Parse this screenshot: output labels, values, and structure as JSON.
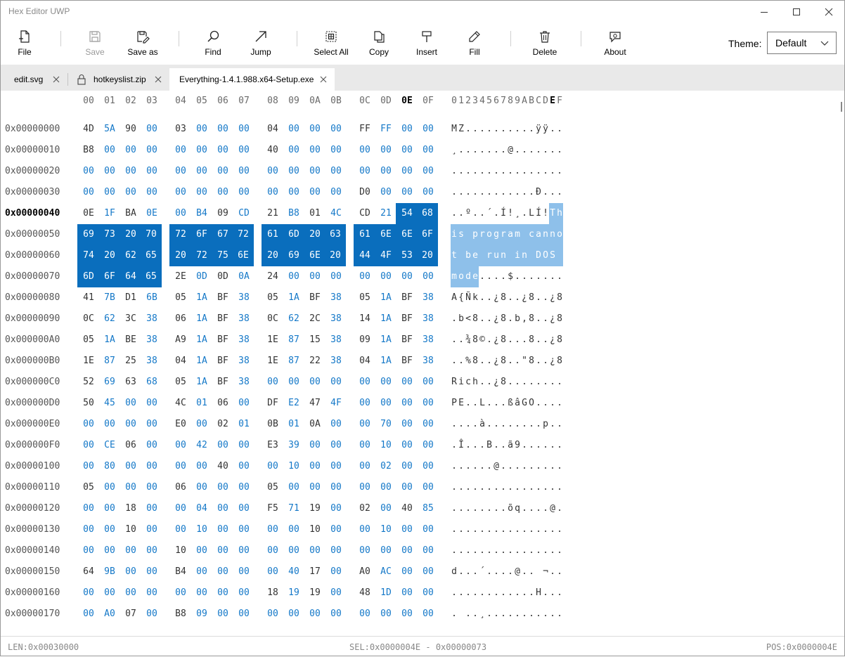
{
  "window": {
    "title": "Hex Editor UWP"
  },
  "toolbar": {
    "file": "File",
    "save": "Save",
    "save_as": "Save as",
    "find": "Find",
    "jump": "Jump",
    "select_all": "Select All",
    "copy": "Copy",
    "insert": "Insert",
    "fill": "Fill",
    "delete": "Delete",
    "about": "About",
    "theme_label": "Theme:",
    "theme_value": "Default"
  },
  "tabs": [
    {
      "label": "edit.svg",
      "locked": false,
      "active": false
    },
    {
      "label": "hotkeyslist.zip",
      "locked": true,
      "active": false
    },
    {
      "label": "Everything-1.4.1.988.x64-Setup.exe",
      "locked": false,
      "active": true
    }
  ],
  "hex": {
    "headers": [
      "00",
      "01",
      "02",
      "03",
      "04",
      "05",
      "06",
      "07",
      "08",
      "09",
      "0A",
      "0B",
      "0C",
      "0D",
      "0E",
      "0F"
    ],
    "ascii_header": "0123456789ABCDEF",
    "current_column": 14,
    "current_row": 4,
    "selection": {
      "start": 78,
      "end": 115
    },
    "rows": [
      {
        "offset": "0x00000000",
        "bytes": "4D 5A 90 00 03 00 00 00 04 00 00 00 FF FF 00 00",
        "ascii": "MZ..........ÿÿ.."
      },
      {
        "offset": "0x00000010",
        "bytes": "B8 00 00 00 00 00 00 00 40 00 00 00 00 00 00 00",
        "ascii": "¸.......@......."
      },
      {
        "offset": "0x00000020",
        "bytes": "00 00 00 00 00 00 00 00 00 00 00 00 00 00 00 00",
        "ascii": "................"
      },
      {
        "offset": "0x00000030",
        "bytes": "00 00 00 00 00 00 00 00 00 00 00 00 D0 00 00 00",
        "ascii": "............Ð..."
      },
      {
        "offset": "0x00000040",
        "bytes": "0E 1F BA 0E 00 B4 09 CD 21 B8 01 4C CD 21 54 68",
        "ascii": "..º..´.Í!¸.LÍ!Th"
      },
      {
        "offset": "0x00000050",
        "bytes": "69 73 20 70 72 6F 67 72 61 6D 20 63 61 6E 6E 6F",
        "ascii": "is program canno"
      },
      {
        "offset": "0x00000060",
        "bytes": "74 20 62 65 20 72 75 6E 20 69 6E 20 44 4F 53 20",
        "ascii": "t be run in DOS "
      },
      {
        "offset": "0x00000070",
        "bytes": "6D 6F 64 65 2E 0D 0D 0A 24 00 00 00 00 00 00 00",
        "ascii": "mode....$......."
      },
      {
        "offset": "0x00000080",
        "bytes": "41 7B D1 6B 05 1A BF 38 05 1A BF 38 05 1A BF 38",
        "ascii": "A{Ñk..¿8..¿8..¿8"
      },
      {
        "offset": "0x00000090",
        "bytes": "0C 62 3C 38 06 1A BF 38 0C 62 2C 38 14 1A BF 38",
        "ascii": ".b<8..¿8.b,8..¿8"
      },
      {
        "offset": "0x000000A0",
        "bytes": "05 1A BE 38 A9 1A BF 38 1E 87 15 38 09 1A BF 38",
        "ascii": "..¾8©.¿8...8..¿8"
      },
      {
        "offset": "0x000000B0",
        "bytes": "1E 87 25 38 04 1A BF 38 1E 87 22 38 04 1A BF 38",
        "ascii": "..%8..¿8..\"8..¿8"
      },
      {
        "offset": "0x000000C0",
        "bytes": "52 69 63 68 05 1A BF 38 00 00 00 00 00 00 00 00",
        "ascii": "Rich..¿8........"
      },
      {
        "offset": "0x000000D0",
        "bytes": "50 45 00 00 4C 01 06 00 DF E2 47 4F 00 00 00 00",
        "ascii": "PE..L...ßâGO...."
      },
      {
        "offset": "0x000000E0",
        "bytes": "00 00 00 00 E0 00 02 01 0B 01 0A 00 00 70 00 00",
        "ascii": "....à........p.."
      },
      {
        "offset": "0x000000F0",
        "bytes": "00 CE 06 00 00 42 00 00 E3 39 00 00 00 10 00 00",
        "ascii": ".Î...B..ã9......"
      },
      {
        "offset": "0x00000100",
        "bytes": "00 80 00 00 00 00 40 00 00 10 00 00 00 02 00 00",
        "ascii": "......@........."
      },
      {
        "offset": "0x00000110",
        "bytes": "05 00 00 00 06 00 00 00 05 00 00 00 00 00 00 00",
        "ascii": "................"
      },
      {
        "offset": "0x00000120",
        "bytes": "00 00 18 00 00 04 00 00 F5 71 19 00 02 00 40 85",
        "ascii": "........õq....@."
      },
      {
        "offset": "0x00000130",
        "bytes": "00 00 10 00 00 10 00 00 00 00 10 00 00 10 00 00",
        "ascii": "................"
      },
      {
        "offset": "0x00000140",
        "bytes": "00 00 00 00 10 00 00 00 00 00 00 00 00 00 00 00",
        "ascii": "................"
      },
      {
        "offset": "0x00000150",
        "bytes": "64 9B 00 00 B4 00 00 00 00 40 17 00 A0 AC 00 00",
        "ascii": "d...´....@.. ¬.."
      },
      {
        "offset": "0x00000160",
        "bytes": "00 00 00 00 00 00 00 00 18 19 19 00 48 1D 00 00",
        "ascii": "............H..."
      },
      {
        "offset": "0x00000170",
        "bytes": "00 A0 07 00 B8 09 00 00 00 00 00 00 00 00 00 00",
        "ascii": ". ..¸..........."
      }
    ]
  },
  "status": {
    "len": "LEN:0x00030000",
    "sel": "SEL:0x0000004E - 0x00000073",
    "pos": "POS:0x0000004E"
  },
  "colors": {
    "zero_byte": "#1478c8",
    "selection": "#0a6ebd",
    "ascii_selection": "#8ec0ea",
    "tab_bar": "#e9e9e9"
  }
}
